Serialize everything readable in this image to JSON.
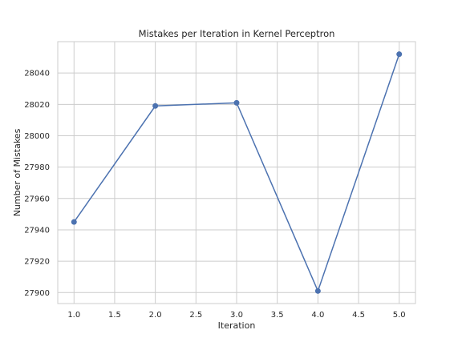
{
  "chart_data": {
    "type": "line",
    "title": "Mistakes per Iteration in Kernel Perceptron",
    "xlabel": "Iteration",
    "ylabel": "Number of Mistakes",
    "x": [
      1.0,
      2.0,
      3.0,
      4.0,
      5.0
    ],
    "series": [
      {
        "values": [
          27945,
          28019,
          28021,
          27901,
          28052
        ]
      }
    ],
    "xlim": [
      0.8,
      5.2
    ],
    "ylim": [
      27893,
      28060
    ],
    "xticks": [
      "1.0",
      "1.5",
      "2.0",
      "2.5",
      "3.0",
      "3.5",
      "4.0",
      "4.5",
      "5.0"
    ],
    "yticks": [
      "27900",
      "27920",
      "27940",
      "27960",
      "27980",
      "28000",
      "28020",
      "28040"
    ],
    "grid": true,
    "legend": "none",
    "colors": {
      "line": "#4c72b0",
      "grid": "#cccccc",
      "frame": "#cccccc",
      "text": "#262626"
    }
  }
}
